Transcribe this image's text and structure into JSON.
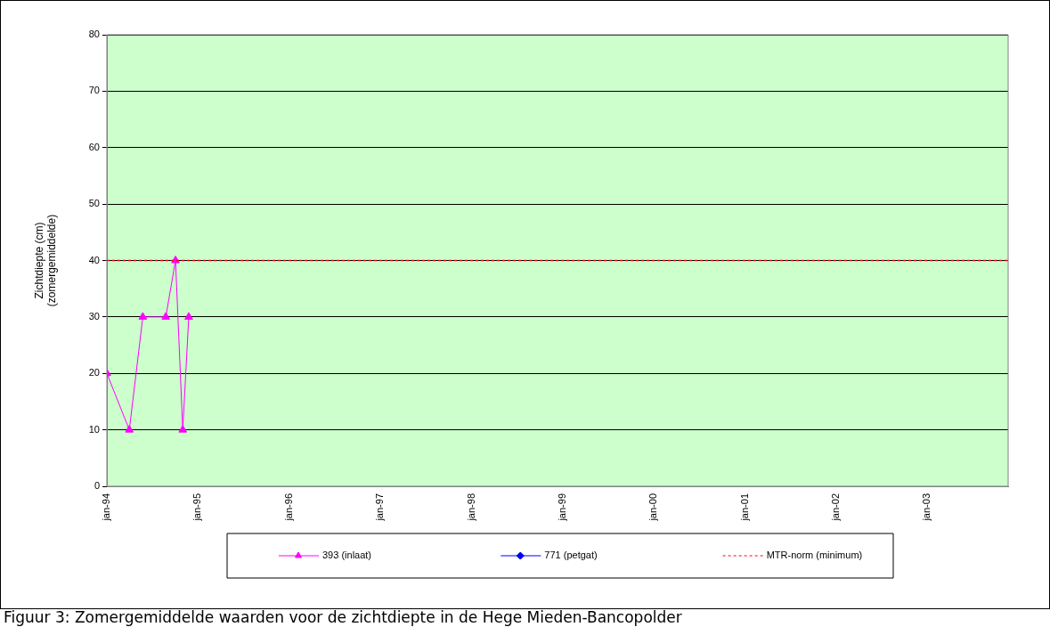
{
  "chart_data": {
    "type": "line",
    "ylabel": "Zichtdiepte (cm)\n(zomergemiddelde)",
    "annotations": [
      "Figuur 3:  Zomergemiddelde waarden voor de zichtdiepte in de Hege Mieden-Bancopolder"
    ],
    "series": [
      {
        "name": "393 (inlaat)",
        "color": "#ff00ff",
        "marker": "triangle",
        "x": [
          "1994-01-01",
          "1994-04-01",
          "1994-05-25",
          "1994-08-25",
          "1994-10-03",
          "1994-11-01",
          "1994-11-25"
        ],
        "values": [
          20,
          10,
          30,
          30,
          40,
          10,
          30
        ]
      },
      {
        "name": "771 (petgat)",
        "color": "#0000ff",
        "marker": "diamond"
      }
    ],
    "ref_lines": [
      {
        "axis": "y",
        "value": 40,
        "label": "MTR-norm (minimum)",
        "color": "#ff0000",
        "line_style": "dotted"
      }
    ],
    "xlim": [
      "1994-01-01",
      "2003-11-20"
    ],
    "xticks": [
      {
        "value": "1994-01-01",
        "label": "jan-94"
      },
      {
        "value": "1995-01-01",
        "label": "jan-95"
      },
      {
        "value": "1996-01-01",
        "label": "jan-96"
      },
      {
        "value": "1997-01-01",
        "label": "jan-97"
      },
      {
        "value": "1998-01-01",
        "label": "jan-98"
      },
      {
        "value": "1999-01-01",
        "label": "jan-99"
      },
      {
        "value": "2000-01-01",
        "label": "jan-00"
      },
      {
        "value": "2001-01-01",
        "label": "jan-01"
      },
      {
        "value": "2002-01-01",
        "label": "jan-02"
      },
      {
        "value": "2003-01-01",
        "label": "jan-03"
      }
    ],
    "ylim": [
      0,
      80
    ],
    "yticks": [
      0,
      10,
      20,
      30,
      40,
      50,
      60,
      70,
      80
    ],
    "grid": "y",
    "legend": "bottom"
  }
}
